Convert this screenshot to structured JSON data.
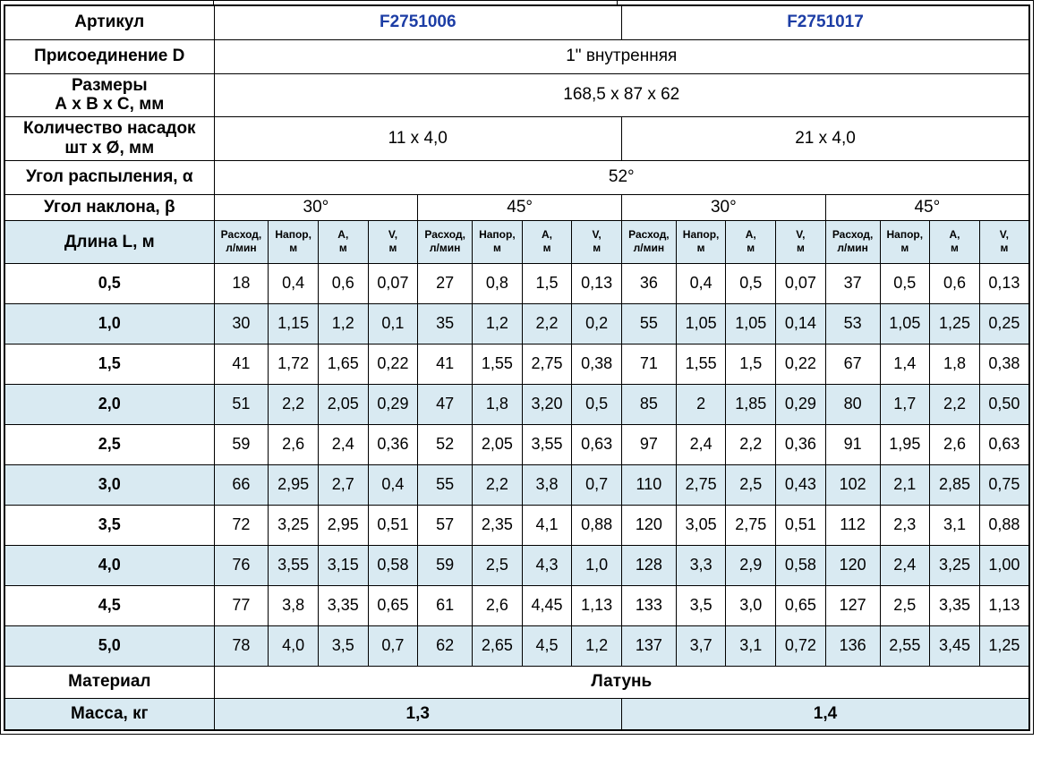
{
  "colors": {
    "band": "#d9eaf2",
    "article_blue": "#1c3da5",
    "border": "#000000"
  },
  "info_rows": {
    "article": {
      "label": "Артикул",
      "values": [
        "F2751006",
        "F2751017"
      ]
    },
    "connection": {
      "label": "Присоединение D",
      "value": "1\" внутренняя"
    },
    "dimensions": {
      "label_line1": "Размеры",
      "label_line2": "А х В х С, мм",
      "value": "168,5 x 87 x 62"
    },
    "nozzles": {
      "label_line1": "Количество насадок",
      "label_line2": "шт х Ø, мм",
      "values": [
        "11 х 4,0",
        "21 х 4,0"
      ]
    },
    "spray_angle": {
      "label": "Угол распыления, α",
      "value": "52°"
    },
    "tilt_angle": {
      "label": "Угол наклона, β",
      "values": [
        "30°",
        "45°",
        "30°",
        "45°"
      ]
    }
  },
  "grid": {
    "length_header": "Длина L, м",
    "measure_headers": [
      [
        "Расход,",
        "л/мин"
      ],
      [
        "Напор,",
        "м"
      ],
      [
        "А,",
        "м"
      ],
      [
        "V,",
        "м"
      ]
    ],
    "rows": [
      {
        "length": "0,5",
        "values": [
          "18",
          "0,4",
          "0,6",
          "0,07",
          "27",
          "0,8",
          "1,5",
          "0,13",
          "36",
          "0,4",
          "0,5",
          "0,07",
          "37",
          "0,5",
          "0,6",
          "0,13"
        ]
      },
      {
        "length": "1,0",
        "values": [
          "30",
          "1,15",
          "1,2",
          "0,1",
          "35",
          "1,2",
          "2,2",
          "0,2",
          "55",
          "1,05",
          "1,05",
          "0,14",
          "53",
          "1,05",
          "1,25",
          "0,25"
        ]
      },
      {
        "length": "1,5",
        "values": [
          "41",
          "1,72",
          "1,65",
          "0,22",
          "41",
          "1,55",
          "2,75",
          "0,38",
          "71",
          "1,55",
          "1,5",
          "0,22",
          "67",
          "1,4",
          "1,8",
          "0,38"
        ]
      },
      {
        "length": "2,0",
        "values": [
          "51",
          "2,2",
          "2,05",
          "0,29",
          "47",
          "1,8",
          "3,20",
          "0,5",
          "85",
          "2",
          "1,85",
          "0,29",
          "80",
          "1,7",
          "2,2",
          "0,50"
        ]
      },
      {
        "length": "2,5",
        "values": [
          "59",
          "2,6",
          "2,4",
          "0,36",
          "52",
          "2,05",
          "3,55",
          "0,63",
          "97",
          "2,4",
          "2,2",
          "0,36",
          "91",
          "1,95",
          "2,6",
          "0,63"
        ]
      },
      {
        "length": "3,0",
        "values": [
          "66",
          "2,95",
          "2,7",
          "0,4",
          "55",
          "2,2",
          "3,8",
          "0,7",
          "110",
          "2,75",
          "2,5",
          "0,43",
          "102",
          "2,1",
          "2,85",
          "0,75"
        ]
      },
      {
        "length": "3,5",
        "values": [
          "72",
          "3,25",
          "2,95",
          "0,51",
          "57",
          "2,35",
          "4,1",
          "0,88",
          "120",
          "3,05",
          "2,75",
          "0,51",
          "112",
          "2,3",
          "3,1",
          "0,88"
        ]
      },
      {
        "length": "4,0",
        "values": [
          "76",
          "3,55",
          "3,15",
          "0,58",
          "59",
          "2,5",
          "4,3",
          "1,0",
          "128",
          "3,3",
          "2,9",
          "0,58",
          "120",
          "2,4",
          "3,25",
          "1,00"
        ]
      },
      {
        "length": "4,5",
        "values": [
          "77",
          "3,8",
          "3,35",
          "0,65",
          "61",
          "2,6",
          "4,45",
          "1,13",
          "133",
          "3,5",
          "3,0",
          "0,65",
          "127",
          "2,5",
          "3,35",
          "1,13"
        ]
      },
      {
        "length": "5,0",
        "values": [
          "78",
          "4,0",
          "3,5",
          "0,7",
          "62",
          "2,65",
          "4,5",
          "1,2",
          "137",
          "3,7",
          "3,1",
          "0,72",
          "136",
          "2,55",
          "3,45",
          "1,25"
        ]
      }
    ]
  },
  "footer_rows": {
    "material": {
      "label": "Материал",
      "value": "Латунь"
    },
    "mass": {
      "label": "Масса, кг",
      "values": [
        "1,3",
        "1,4"
      ]
    }
  }
}
